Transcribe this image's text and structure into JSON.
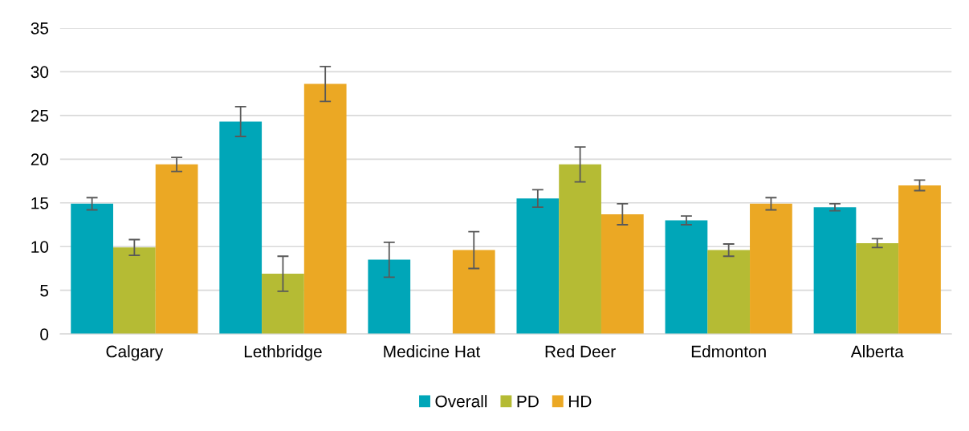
{
  "chart_data": {
    "type": "bar",
    "categories": [
      "Calgary",
      "Lethbridge",
      "Medicine Hat",
      "Red Deer",
      "Edmonton",
      "Alberta"
    ],
    "series": [
      {
        "name": "Overall",
        "color": "#00a6b8",
        "values": [
          14.9,
          24.3,
          8.5,
          15.5,
          13.0,
          14.5
        ],
        "errors": [
          0.7,
          1.7,
          2.0,
          1.0,
          0.5,
          0.4
        ]
      },
      {
        "name": "PD",
        "color": "#b5bb34",
        "values": [
          9.9,
          6.9,
          null,
          19.4,
          9.6,
          10.4
        ],
        "errors": [
          0.9,
          2.0,
          null,
          2.0,
          0.7,
          0.5
        ]
      },
      {
        "name": "HD",
        "color": "#eba824",
        "values": [
          19.4,
          28.6,
          9.6,
          13.7,
          14.9,
          17.0
        ],
        "errors": [
          0.8,
          2.0,
          2.1,
          1.2,
          0.7,
          0.6
        ]
      }
    ],
    "ylim": [
      0,
      35
    ],
    "yticks": [
      0,
      5,
      10,
      15,
      20,
      25,
      30,
      35
    ],
    "grid": "y",
    "legend": "bottom"
  }
}
